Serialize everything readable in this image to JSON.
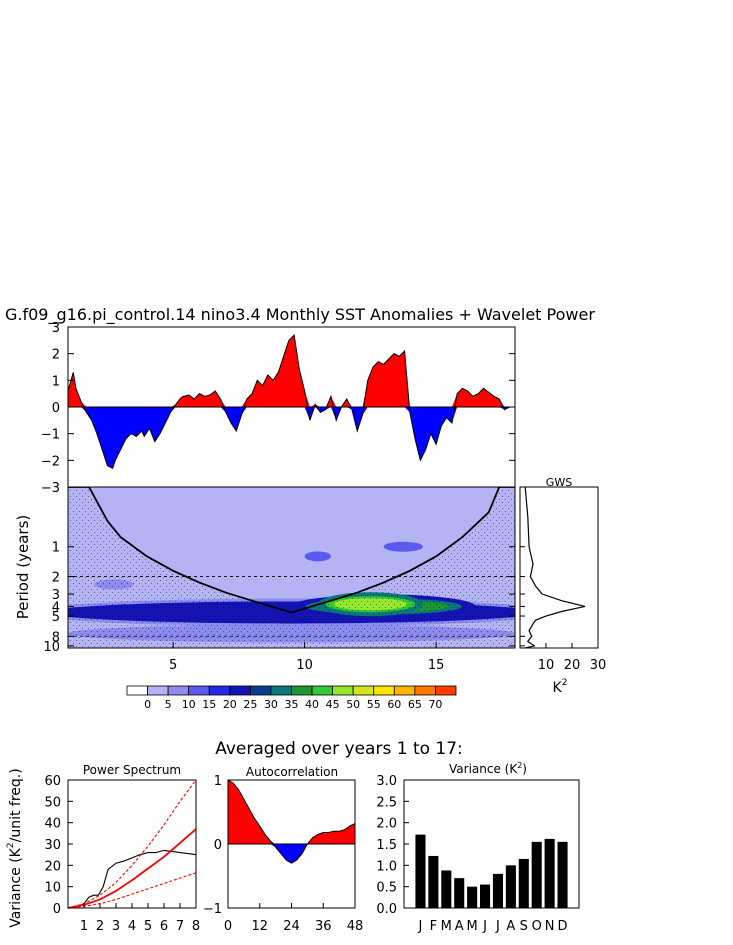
{
  "colors": {
    "positive": "#ff0000",
    "negative": "#0000ff",
    "line": "#000000",
    "power_levels": [
      "#ffffff",
      "#b4b4f5",
      "#8c8cf0",
      "#5a5af0",
      "#2828e6",
      "#1414b4",
      "#0a3c8c",
      "#0a7878",
      "#1e9632",
      "#32c832",
      "#96e632",
      "#d2e61e",
      "#ffe600",
      "#ffb400",
      "#ff7800",
      "#ff3c00",
      "#ff0000"
    ]
  },
  "chart_data": [
    {
      "id": "sst-anomalies",
      "type": "area",
      "title": "G.f09_g16.pi_control.14 nino3.4 Monthly SST Anomalies + Wavelet Power",
      "xlim": [
        1,
        18
      ],
      "ylim": [
        -3,
        3
      ],
      "yticks": [
        -3,
        -2,
        -1,
        0,
        1,
        2,
        3
      ],
      "ytick_labels": [
        "−3",
        "−2",
        "−1",
        "0",
        "1",
        "2",
        "3"
      ],
      "x": [
        1.0,
        1.2,
        1.3,
        1.5,
        1.7,
        1.9,
        2.1,
        2.3,
        2.5,
        2.7,
        2.8,
        3.0,
        3.2,
        3.4,
        3.6,
        3.8,
        3.9,
        4.1,
        4.3,
        4.5,
        4.7,
        4.9,
        5.1,
        5.3,
        5.4,
        5.6,
        5.8,
        6.0,
        6.2,
        6.4,
        6.6,
        6.8,
        7.0,
        7.2,
        7.4,
        7.6,
        7.8,
        8.0,
        8.2,
        8.4,
        8.6,
        8.8,
        9.0,
        9.2,
        9.4,
        9.6,
        9.8,
        10.0,
        10.2,
        10.4,
        10.6,
        10.8,
        11.0,
        11.2,
        11.4,
        11.6,
        11.8,
        12.0,
        12.2,
        12.4,
        12.6,
        12.8,
        13.0,
        13.2,
        13.4,
        13.6,
        13.8,
        14.0,
        14.2,
        14.4,
        14.6,
        14.8,
        15.0,
        15.2,
        15.4,
        15.6,
        15.8,
        16.0,
        16.2,
        16.4,
        16.6,
        16.8,
        17.0,
        17.2,
        17.4,
        17.6,
        17.8,
        18.0
      ],
      "values": [
        0.6,
        1.3,
        0.7,
        0.2,
        -0.2,
        -0.5,
        -1.0,
        -1.6,
        -2.2,
        -2.3,
        -2.0,
        -1.6,
        -1.2,
        -1.0,
        -1.1,
        -0.9,
        -1.1,
        -0.8,
        -1.3,
        -1.0,
        -0.6,
        -0.2,
        0.1,
        0.35,
        0.4,
        0.45,
        0.3,
        0.5,
        0.4,
        0.45,
        0.6,
        0.3,
        -0.2,
        -0.6,
        -0.9,
        -0.3,
        0.3,
        0.5,
        1.0,
        0.8,
        1.2,
        1.0,
        1.3,
        1.9,
        2.5,
        2.7,
        1.4,
        0.6,
        -0.5,
        0.1,
        -0.2,
        -0.1,
        0.4,
        -0.5,
        0.0,
        0.3,
        -0.1,
        -0.9,
        -0.3,
        1.0,
        1.5,
        1.7,
        1.6,
        1.8,
        2.0,
        1.9,
        2.1,
        -0.2,
        -1.2,
        -2.0,
        -1.6,
        -1.0,
        -1.4,
        -0.7,
        -0.4,
        -0.6,
        0.5,
        0.7,
        0.6,
        0.4,
        0.5,
        0.7,
        0.55,
        0.4,
        0.3,
        -0.1,
        0.0,
        0.0
      ]
    },
    {
      "id": "wavelet-power",
      "type": "heatmap",
      "ylabel": "Period (years)",
      "xlim": [
        1,
        18
      ],
      "xticks": [
        5,
        10,
        15
      ],
      "yticks": [
        1,
        2,
        3,
        4,
        5,
        8,
        10
      ],
      "ylim": [
        0.25,
        10.5
      ],
      "cone_of_influence": {
        "x": [
          1.0,
          1.8,
          2.5,
          3.0,
          4.0,
          5.0,
          6.0,
          7.0,
          8.0,
          9.0,
          9.5,
          10.0,
          11.0,
          12.0,
          13.0,
          14.0,
          15.0,
          16.0,
          17.0,
          17.4,
          18.0
        ],
        "period": [
          0.25,
          0.25,
          0.55,
          0.8,
          1.25,
          1.75,
          2.3,
          2.9,
          3.5,
          4.2,
          4.6,
          4.2,
          3.5,
          2.9,
          2.3,
          1.75,
          1.25,
          0.8,
          0.45,
          0.25,
          0.25
        ]
      },
      "significance_band": {
        "period": [
          2.0,
          8.0
        ]
      },
      "features": [
        {
          "x0": 1.0,
          "x1": 18.0,
          "period": 4.6,
          "power": 22,
          "label": "main band"
        },
        {
          "x0": 9.5,
          "x1": 16.5,
          "period": 4.0,
          "power": 38,
          "label": "peak"
        },
        {
          "x0": 10.5,
          "x1": 14.5,
          "period": 3.8,
          "power": 48,
          "label": "core"
        },
        {
          "x0": 10.0,
          "x1": 11.0,
          "period": 1.25,
          "power": 12,
          "label": "blob"
        },
        {
          "x0": 13.0,
          "x1": 14.5,
          "period": 1.0,
          "power": 12,
          "label": "blob"
        },
        {
          "x0": 2.0,
          "x1": 3.5,
          "period": 2.4,
          "power": 8,
          "label": "blob"
        },
        {
          "x0": 1.0,
          "x1": 18.0,
          "period": 7.5,
          "power": 6,
          "label": "lower band"
        }
      ],
      "colorbar": {
        "levels": [
          0,
          5,
          10,
          15,
          20,
          25,
          30,
          35,
          40,
          45,
          50,
          55,
          60,
          65,
          70
        ],
        "labels": [
          "0",
          "5",
          "10",
          "15",
          "20",
          "25",
          "30",
          "35",
          "40",
          "45",
          "50",
          "55",
          "60",
          "65",
          "70"
        ]
      }
    },
    {
      "id": "global-wavelet-spectrum",
      "type": "line",
      "title": "GWS",
      "xlabel": "K",
      "xlabel_sup": "2",
      "xlim": [
        0,
        30
      ],
      "xticks": [
        10,
        20,
        30
      ],
      "period": [
        0.25,
        0.5,
        1.0,
        1.5,
        2.0,
        2.5,
        3.0,
        3.5,
        4.0,
        4.5,
        5.0,
        5.5,
        6.0,
        7.0,
        8.0,
        9.0,
        10.0,
        10.5
      ],
      "values": [
        2.0,
        3.0,
        3.5,
        5.0,
        4.0,
        6.0,
        8.5,
        16.0,
        25.0,
        16.0,
        10.0,
        6.0,
        5.0,
        3.5,
        4.5,
        3.0,
        5.5,
        2.0
      ]
    },
    {
      "id": "section-title",
      "type": "table",
      "title": "Averaged over years 1 to 17:"
    },
    {
      "id": "power-spectrum",
      "type": "line",
      "title": "Power Spectrum",
      "ylabel": "Variance (K",
      "ylabel_sup": "2",
      "ylabel_tail": "/unit freq.)",
      "xlim": [
        0,
        8
      ],
      "ylim": [
        0,
        60
      ],
      "xticks": [
        1,
        2,
        3,
        4,
        5,
        6,
        7,
        8
      ],
      "yticks": [
        0,
        10,
        20,
        30,
        40,
        50,
        60
      ],
      "series": [
        {
          "name": "spectrum",
          "color": "#000000",
          "x": [
            0.1,
            0.5,
            1.0,
            1.3,
            1.6,
            1.9,
            2.2,
            2.5,
            3.0,
            3.5,
            4.0,
            4.5,
            5.0,
            5.5,
            6.0,
            6.5,
            7.0,
            7.5,
            8.0
          ],
          "y": [
            0.0,
            0.5,
            2.0,
            5.0,
            6.0,
            6.0,
            10.0,
            18.0,
            21.0,
            22.0,
            23.5,
            25.0,
            26.0,
            26.0,
            27.0,
            26.5,
            26.0,
            25.5,
            25.0
          ]
        },
        {
          "name": "red-noise",
          "color": "#ff0000",
          "x": [
            0,
            1,
            2,
            3,
            4,
            5,
            6,
            7,
            8
          ],
          "y": [
            0,
            1.5,
            4.0,
            8.0,
            13.0,
            18.5,
            24.0,
            30.5,
            37.0
          ]
        },
        {
          "name": "upper-bound",
          "color": "#ff0000",
          "dash": true,
          "x": [
            0,
            1,
            2,
            3,
            4,
            5,
            6,
            7,
            8
          ],
          "y": [
            0,
            2.0,
            6.0,
            12.0,
            20.0,
            29.0,
            39.0,
            50.0,
            62.0
          ]
        },
        {
          "name": "lower-bound",
          "color": "#ff0000",
          "dash": true,
          "x": [
            0,
            1,
            2,
            3,
            4,
            5,
            6,
            7,
            8
          ],
          "y": [
            0,
            0.8,
            2.0,
            4.0,
            6.5,
            9.0,
            11.5,
            14.0,
            16.5
          ]
        }
      ]
    },
    {
      "id": "autocorrelation",
      "type": "area",
      "title": "Autocorrelation",
      "xlim": [
        0,
        48
      ],
      "ylim": [
        -1,
        1
      ],
      "xticks": [
        0,
        12,
        24,
        36,
        48
      ],
      "yticks": [
        -1,
        0,
        1
      ],
      "ytick_labels": [
        "−1",
        "0",
        "1"
      ],
      "x": [
        0,
        2,
        4,
        6,
        8,
        10,
        12,
        14,
        16,
        18,
        20,
        22,
        24,
        26,
        28,
        30,
        32,
        34,
        36,
        38,
        40,
        42,
        44,
        46,
        48
      ],
      "values": [
        1.0,
        0.95,
        0.85,
        0.7,
        0.55,
        0.4,
        0.28,
        0.15,
        0.05,
        -0.05,
        -0.15,
        -0.25,
        -0.3,
        -0.25,
        -0.15,
        0.0,
        0.1,
        0.15,
        0.18,
        0.18,
        0.2,
        0.2,
        0.22,
        0.28,
        0.32
      ]
    },
    {
      "id": "monthly-variance",
      "type": "bar",
      "title": "Variance (K",
      "title_sup": "2",
      "title_tail": ")",
      "categories": [
        "J",
        "F",
        "M",
        "A",
        "M",
        "J",
        "J",
        "A",
        "S",
        "O",
        "N",
        "D"
      ],
      "values": [
        1.72,
        1.22,
        0.88,
        0.7,
        0.5,
        0.55,
        0.8,
        1.0,
        1.15,
        1.55,
        1.62,
        1.55
      ],
      "ylim": [
        0,
        3.0
      ],
      "yticks": [
        0.0,
        0.5,
        1.0,
        1.5,
        2.0,
        2.5,
        3.0
      ],
      "ytick_labels": [
        "0.0",
        "0.5",
        "1.0",
        "1.5",
        "2.0",
        "2.5",
        "3.0"
      ]
    }
  ]
}
